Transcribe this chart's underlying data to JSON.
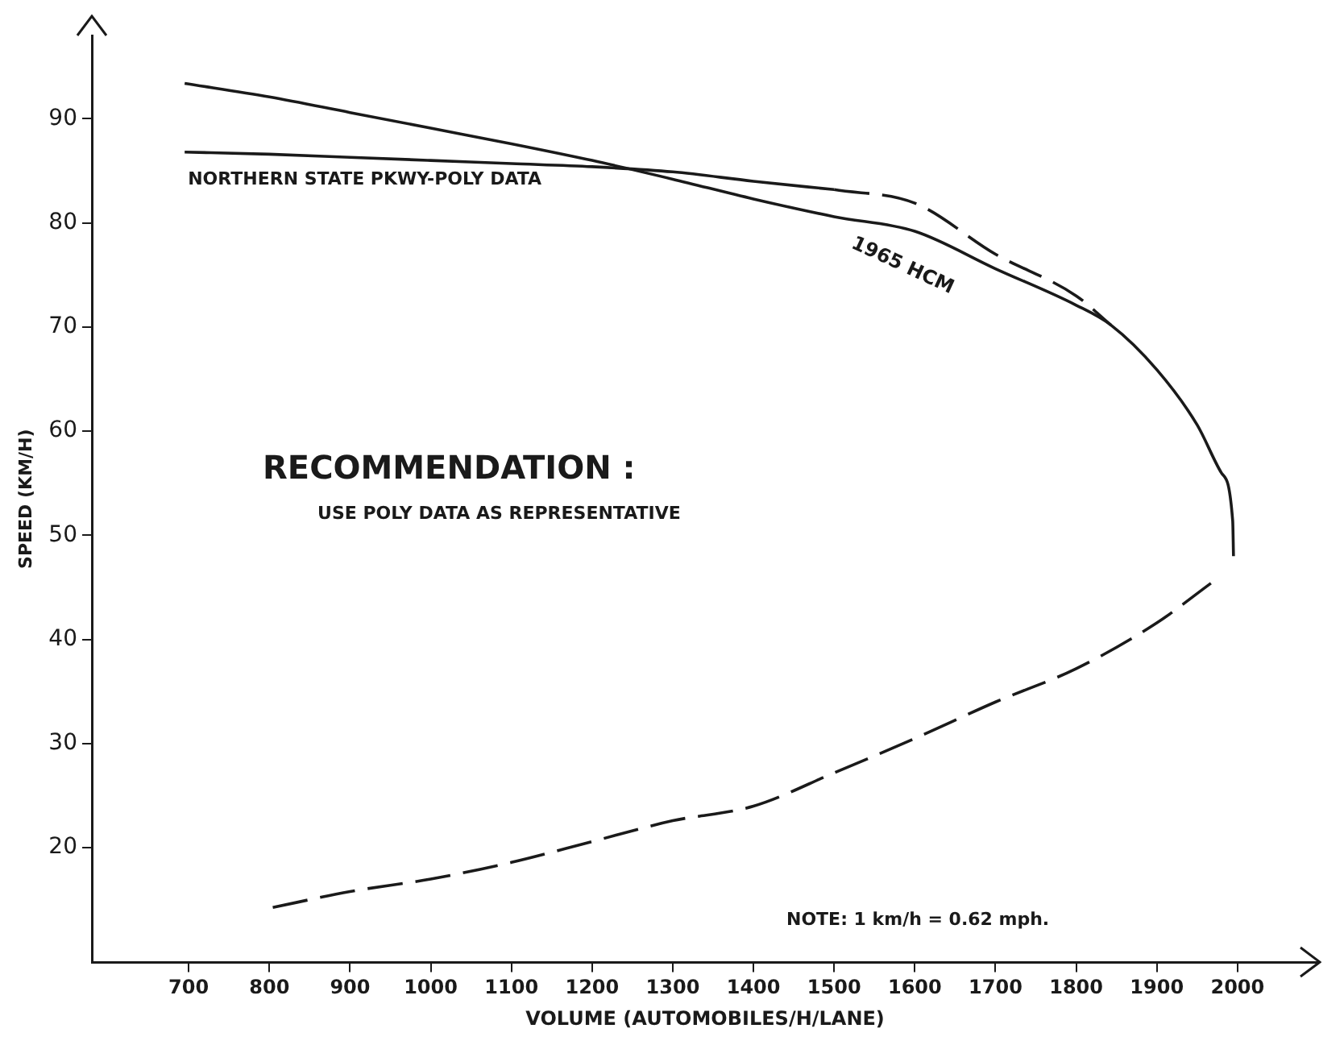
{
  "chart_data": {
    "type": "line",
    "xlabel": "VOLUME (AUTOMOBILES/H/LANE)",
    "ylabel": "SPEED (KM/H)",
    "xlim": [
      580,
      2100
    ],
    "ylim": [
      9,
      98
    ],
    "xticks": [
      700,
      800,
      900,
      1000,
      1100,
      1200,
      1300,
      1400,
      1500,
      1600,
      1700,
      1800,
      1900,
      2000
    ],
    "yticks": [
      20,
      30,
      40,
      50,
      60,
      70,
      80,
      90
    ],
    "grid": false,
    "legend": false,
    "marker": "none",
    "annotations": [
      "RECOMMENDATION :",
      "USE POLY DATA AS REPRESENTATIVE",
      "NOTE: 1 km/h = 0.62 mph."
    ],
    "series": [
      {
        "name": "NORTHERN STATE PKWY-POLY DATA",
        "color": "#1a1a1a",
        "line_style": "solid",
        "x": [
          695,
          800,
          900,
          1000,
          1100,
          1200,
          1300,
          1400,
          1500
        ],
        "values": [
          86.8,
          86.6,
          86.3,
          86.0,
          85.7,
          85.4,
          84.9,
          84.0,
          83.2
        ]
      },
      {
        "color": "#1a1a1a",
        "line_style": "dashed",
        "x": [
          1500,
          1600,
          1700,
          1800,
          1843
        ],
        "values": [
          83.2,
          81.9,
          77,
          73,
          70.2
        ]
      },
      {
        "color": "#1a1a1a",
        "line_style": "dashed",
        "x": [
          1967,
          1900,
          1800,
          1700,
          1600,
          1500,
          1400,
          1300,
          1200,
          1100,
          1000,
          900,
          800
        ],
        "values": [
          45.4,
          41.6,
          37.2,
          34.0,
          30.5,
          27.2,
          24.0,
          22.6,
          20.6,
          18.6,
          17.0,
          15.8,
          14.2
        ]
      },
      {
        "name": "1965 HCM",
        "color": "#1a1a1a",
        "line_style": "solid",
        "x": [
          695,
          800,
          900,
          1000,
          1100,
          1200,
          1300,
          1400,
          1500,
          1600,
          1700,
          1800,
          1843,
          1900,
          1950,
          1980,
          1994,
          1995
        ],
        "values": [
          93.4,
          92.1,
          90.6,
          89.1,
          87.6,
          86.0,
          84.2,
          82.3,
          80.6,
          79.2,
          75.6,
          72.1,
          70.2,
          65.9,
          60.6,
          56.0,
          51.4,
          48.0
        ]
      }
    ]
  }
}
